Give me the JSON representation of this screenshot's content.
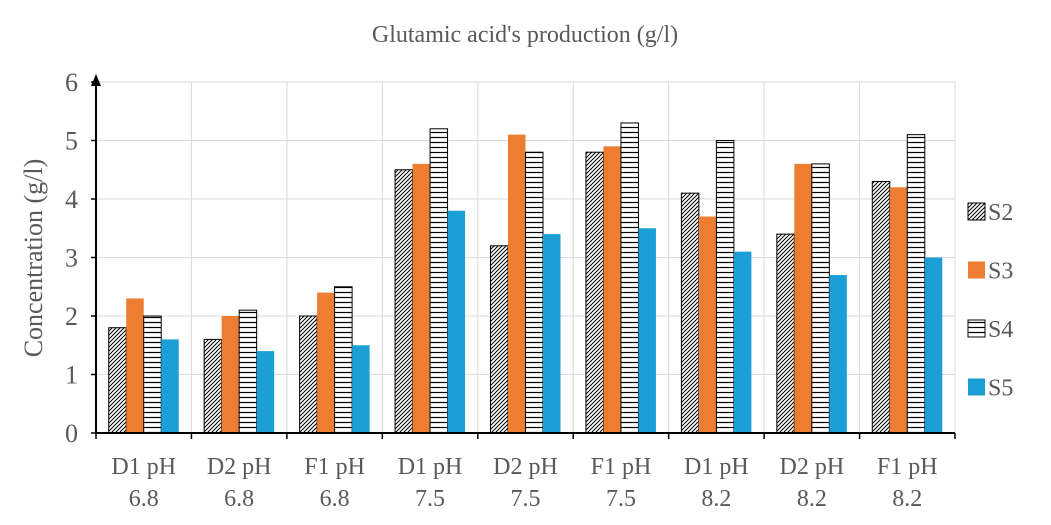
{
  "chart_data": {
    "type": "bar",
    "title": "Glutamic acid's production (g/l)",
    "xlabel": "",
    "ylabel": "Concentration (g/l)",
    "ylim": [
      0,
      6
    ],
    "yticks": [
      "0",
      "1",
      "2",
      "3",
      "4",
      "5",
      "6"
    ],
    "categories": [
      [
        "D1  pH",
        "6.8"
      ],
      [
        "D2  pH",
        "6.8"
      ],
      [
        "F1  pH",
        "6.8"
      ],
      [
        "D1  pH",
        "7.5"
      ],
      [
        "D2  pH",
        "7.5"
      ],
      [
        "F1  pH",
        "7.5"
      ],
      [
        "D1  pH",
        "8.2"
      ],
      [
        "D2  pH",
        "8.2"
      ],
      [
        "F1  pH",
        "8.2"
      ]
    ],
    "series": [
      {
        "name": "S2",
        "pattern": "diagonal-hatch",
        "color": "#000000",
        "values": [
          1.8,
          1.6,
          2.0,
          4.5,
          3.2,
          4.8,
          4.1,
          3.4,
          4.3
        ]
      },
      {
        "name": "S3",
        "pattern": "solid",
        "color": "#ED7D31",
        "values": [
          2.3,
          2.0,
          2.4,
          4.6,
          5.1,
          4.9,
          3.7,
          4.6,
          4.2
        ]
      },
      {
        "name": "S4",
        "pattern": "horizontal-hatch",
        "color": "#000000",
        "values": [
          2.0,
          2.1,
          2.5,
          5.2,
          4.8,
          5.3,
          5.0,
          4.6,
          5.1
        ]
      },
      {
        "name": "S5",
        "pattern": "solid",
        "color": "#1B9FD6",
        "values": [
          1.6,
          1.4,
          1.5,
          3.8,
          3.4,
          3.5,
          3.1,
          2.7,
          3.0
        ]
      }
    ],
    "grid": true,
    "legend_position": "right"
  }
}
